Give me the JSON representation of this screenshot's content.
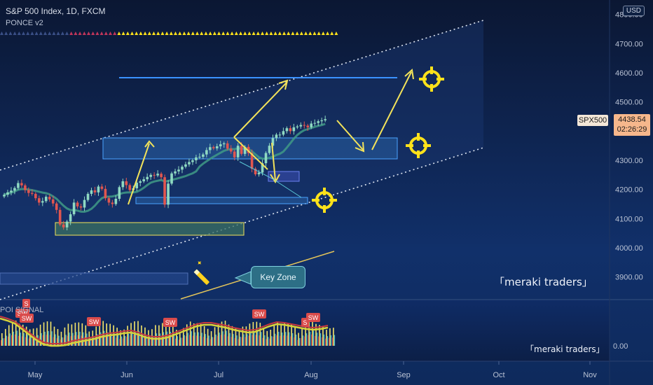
{
  "header": {
    "symbol_line": "S&P 500 Index, 1D, FXCM",
    "indicator": "PONCE v2"
  },
  "currency_button": "USD",
  "price_axis": {
    "ticks": [
      "4800.00",
      "4700.00",
      "4600.00",
      "4500.00",
      "4400.00",
      "4300.00",
      "4200.00",
      "4100.00",
      "4000.00",
      "3900.00"
    ],
    "values": [
      4800,
      4700,
      4600,
      4500,
      4400,
      4300,
      4200,
      4100,
      4000,
      3900
    ]
  },
  "time_axis": {
    "labels": [
      "May",
      "Jun",
      "Jul",
      "Aug",
      "Sep",
      "Oct",
      "Nov"
    ]
  },
  "ticker_badge": "SPX500",
  "last_price": "4438.54",
  "countdown": "02:26:29",
  "brand_main": "「meraki traders」",
  "brand_sub": "「meraki traders」",
  "key_zone_label": "Key Zone",
  "subpanel": {
    "label": "POI SIGNAL",
    "zero_label": "0.00",
    "signals": [
      "SW",
      "SW",
      "SW",
      "SW",
      "SW",
      "S",
      "S",
      "SW"
    ]
  },
  "colors": {
    "background": "#0b1a36",
    "candle_up": "#8fd9c2",
    "candle_down": "#e1564f",
    "annotation": "#f3e35a",
    "channel": "#dfe6f2"
  },
  "chart_data": {
    "type": "candlestick",
    "title": "S&P 500 Index, 1D, FXCM",
    "ylim": [
      3860,
      4830
    ],
    "y_ticks": [
      3900,
      4000,
      4100,
      4200,
      4300,
      4400,
      4500,
      4600,
      4700,
      4800
    ],
    "x_labels": [
      "May",
      "Jun",
      "Jul",
      "Aug",
      "Sep",
      "Oct",
      "Nov"
    ],
    "close": [
      4182,
      4190,
      4196,
      4205,
      4222,
      4214,
      4198,
      4188,
      4185,
      4170,
      4155,
      4160,
      4175,
      4166,
      4152,
      4130,
      4080,
      4070,
      4090,
      4115,
      4155,
      4142,
      4138,
      4164,
      4185,
      4197,
      4190,
      4210,
      4202,
      4170,
      4155,
      4150,
      4168,
      4208,
      4228,
      4215,
      4198,
      4204,
      4223,
      4228,
      4235,
      4243,
      4250,
      4248,
      4254,
      4242,
      4148,
      4220,
      4255,
      4262,
      4268,
      4278,
      4286,
      4294,
      4300,
      4310,
      4312,
      4320,
      4335,
      4345,
      4341,
      4348,
      4355,
      4358,
      4340,
      4330,
      4310,
      4350,
      4322,
      4346,
      4325,
      4271,
      4252,
      4258,
      4290,
      4325,
      4350,
      4376,
      4388,
      4388,
      4400,
      4410,
      4400,
      4413,
      4416,
      4421,
      4419,
      4413,
      4426,
      4428,
      4434,
      4437,
      4441
    ],
    "last_price": 4438.54
  }
}
